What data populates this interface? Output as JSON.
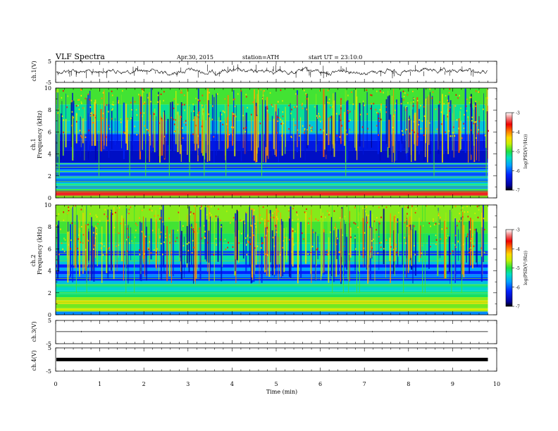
{
  "header": {
    "title": "VLF Spectra",
    "date": "Apr.30, 2015",
    "station": "station=ATH",
    "start": "start  UT =   23:10:0"
  },
  "colorbar": {
    "label": "log(PSD(V²/Hz))",
    "ticks": [
      "-3",
      "-4",
      "-5",
      "-6",
      "-7"
    ]
  },
  "x_axis": {
    "label": "Time  (min)"
  },
  "chart_data": [
    {
      "type": "line",
      "name": "ch1-waveform",
      "ylabel": "ch.1(V)",
      "ylim": [
        -5,
        5
      ],
      "yticks": [
        "5",
        "-5"
      ],
      "xlim": [
        0,
        10
      ],
      "data_xlim": [
        0,
        9.8
      ],
      "baseline": 0.2
    },
    {
      "type": "heatmap",
      "name": "ch1-spectrogram",
      "ylabel_channel": "ch.1",
      "ylabel": "Frequency  (kHz)",
      "ylim": [
        0,
        10
      ],
      "yticks": [
        "0",
        "2",
        "4",
        "6",
        "8",
        "10"
      ],
      "xlim": [
        0,
        10
      ],
      "data_xlim": [
        0,
        9.8
      ],
      "zlim": [
        -7,
        -3
      ],
      "zlabel": "log(PSD(V²/Hz))"
    },
    {
      "type": "heatmap",
      "name": "ch2-spectrogram",
      "ylabel_channel": "ch.2",
      "ylabel": "Frequency  (kHz)",
      "ylim": [
        0,
        10
      ],
      "yticks": [
        "0",
        "2",
        "4",
        "6",
        "8",
        "10"
      ],
      "xlim": [
        0,
        10
      ],
      "data_xlim": [
        0,
        9.8
      ],
      "zlim": [
        -7,
        -3
      ],
      "zlabel": "log(PSD(V²/Hz))"
    },
    {
      "type": "line",
      "name": "ch3-waveform",
      "ylabel": "ch.3(V)",
      "ylim": [
        -5,
        5
      ],
      "yticks": [
        "5",
        "-5"
      ],
      "xlim": [
        0,
        10
      ],
      "data_xlim": [
        0,
        9.8
      ],
      "baseline": 0.2
    },
    {
      "type": "line",
      "name": "ch4-waveform",
      "ylabel": "ch.4(V)",
      "ylim": [
        -5,
        5
      ],
      "yticks": [
        "5",
        "-5"
      ],
      "xlim": [
        0,
        10
      ],
      "data_xlim": [
        0,
        9.8
      ],
      "baseline": 0.0
    }
  ],
  "x_ticks": [
    "0",
    "1",
    "2",
    "3",
    "4",
    "5",
    "6",
    "7",
    "8",
    "9",
    "10"
  ]
}
